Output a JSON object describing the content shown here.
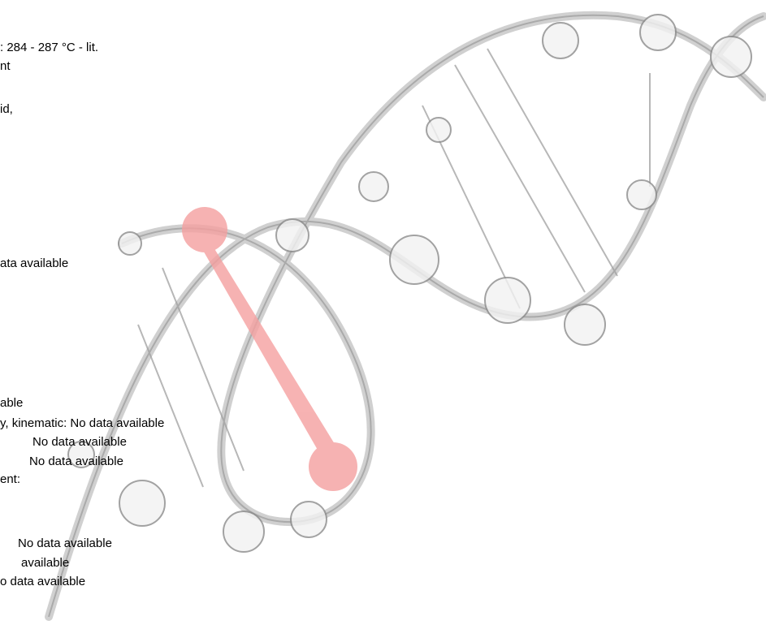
{
  "document": {
    "lines": [
      ": 284 - 287 °C - lit.",
      "nt",
      "id,",
      "ata available",
      "able",
      "y, kinematic: No data available",
      "No data available",
      "No data available",
      "ent:",
      "No data available",
      "available",
      "o data available"
    ]
  }
}
